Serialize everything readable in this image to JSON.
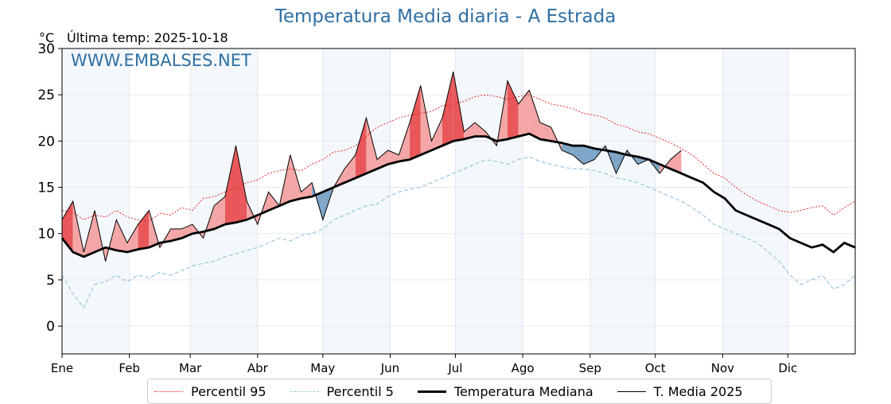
{
  "title": "Temperatura Media diaria - A Estrada",
  "unit_label": "°C",
  "last_temp_label": "Última temp: 2025-10-18",
  "watermark": "WWW.EMBALSES.NET",
  "colors": {
    "p95": "#e8282b",
    "p5": "#9ecae1",
    "median": "#000000",
    "current": "#000000",
    "above_fill": "#f4a6a6",
    "above_fill_strong": "#e8585a",
    "below_fill": "#7ea6c8",
    "below_fill_strong": "#2f6598",
    "month_band": "#f4f8fc",
    "title": "#2e6fa3"
  },
  "chart_data": {
    "type": "line",
    "title": "Temperatura Media diaria - A Estrada",
    "xlabel": "",
    "ylabel": "°C",
    "ylim": [
      -3,
      30
    ],
    "xlim": [
      1,
      366
    ],
    "grid": true,
    "legend_position": "bottom-center",
    "yticks": [
      0,
      5,
      10,
      15,
      20,
      25,
      30
    ],
    "xticks": [
      {
        "day": 1,
        "label": "Ene"
      },
      {
        "day": 32,
        "label": "Feb"
      },
      {
        "day": 60,
        "label": "Mar"
      },
      {
        "day": 91,
        "label": "Abr"
      },
      {
        "day": 121,
        "label": "May"
      },
      {
        "day": 152,
        "label": "Jun"
      },
      {
        "day": 182,
        "label": "Jul"
      },
      {
        "day": 213,
        "label": "Ago"
      },
      {
        "day": 244,
        "label": "Sep"
      },
      {
        "day": 274,
        "label": "Oct"
      },
      {
        "day": 305,
        "label": "Nov"
      },
      {
        "day": 335,
        "label": "Dic"
      }
    ],
    "x": [
      1,
      6,
      11,
      16,
      21,
      26,
      31,
      36,
      41,
      46,
      51,
      56,
      61,
      66,
      71,
      76,
      81,
      86,
      91,
      96,
      101,
      106,
      111,
      116,
      121,
      126,
      131,
      136,
      141,
      146,
      151,
      156,
      161,
      166,
      171,
      176,
      181,
      186,
      191,
      196,
      201,
      206,
      211,
      216,
      221,
      226,
      231,
      236,
      241,
      246,
      251,
      256,
      261,
      266,
      271,
      276,
      281,
      286,
      291,
      296,
      301,
      306,
      311,
      316,
      321,
      326,
      331,
      336,
      341,
      346,
      351,
      356,
      361,
      366
    ],
    "series": [
      {
        "name": "Percentil 95",
        "style": "dotted-red",
        "values": [
          12.5,
          12.3,
          11.5,
          12.0,
          11.8,
          12.5,
          11.8,
          11.5,
          11.3,
          12.2,
          12.0,
          12.8,
          12.5,
          13.8,
          14.0,
          14.5,
          15.0,
          15.5,
          15.8,
          16.5,
          16.8,
          17.0,
          16.8,
          17.5,
          18.0,
          18.8,
          19.0,
          19.5,
          20.5,
          21.5,
          22.0,
          22.5,
          22.8,
          23.0,
          23.2,
          23.8,
          24.0,
          24.3,
          24.8,
          25.0,
          24.8,
          24.5,
          24.8,
          25.0,
          24.5,
          24.0,
          23.8,
          23.5,
          23.0,
          22.8,
          22.5,
          21.8,
          21.5,
          21.0,
          20.8,
          20.3,
          19.8,
          19.2,
          18.5,
          17.5,
          16.5,
          16.0,
          15.0,
          14.2,
          13.5,
          13.0,
          12.5,
          12.3,
          12.5,
          12.8,
          13.0,
          12.0,
          12.8,
          13.5
        ]
      },
      {
        "name": "Percentil 5",
        "style": "dashed-lightblue",
        "values": [
          5.5,
          3.5,
          2.0,
          4.5,
          4.8,
          5.5,
          4.8,
          5.5,
          5.2,
          5.8,
          5.5,
          6.0,
          6.5,
          6.8,
          7.0,
          7.5,
          7.8,
          8.2,
          8.5,
          9.0,
          9.5,
          9.2,
          9.8,
          10.0,
          10.5,
          11.5,
          12.0,
          12.5,
          13.0,
          13.2,
          14.0,
          14.5,
          14.8,
          15.0,
          15.5,
          16.0,
          16.5,
          17.0,
          17.5,
          18.0,
          17.8,
          17.5,
          18.0,
          18.3,
          17.8,
          17.5,
          17.2,
          17.0,
          17.0,
          16.8,
          16.5,
          16.0,
          15.8,
          15.5,
          15.0,
          14.5,
          14.0,
          13.5,
          12.8,
          12.0,
          11.0,
          10.5,
          10.0,
          9.5,
          9.0,
          8.0,
          7.0,
          5.5,
          4.5,
          5.0,
          5.5,
          4.0,
          4.5,
          5.5
        ]
      },
      {
        "name": "Temperatura Mediana",
        "style": "thick-black",
        "values": [
          9.5,
          8.0,
          7.5,
          8.0,
          8.5,
          8.2,
          8.0,
          8.3,
          8.5,
          9.0,
          9.2,
          9.5,
          10.0,
          10.2,
          10.5,
          11.0,
          11.2,
          11.5,
          12.0,
          12.5,
          13.0,
          13.5,
          13.8,
          14.0,
          14.5,
          15.0,
          15.5,
          16.0,
          16.5,
          17.0,
          17.5,
          17.8,
          18.0,
          18.5,
          19.0,
          19.5,
          20.0,
          20.2,
          20.5,
          20.5,
          20.0,
          20.2,
          20.5,
          20.8,
          20.2,
          20.0,
          19.8,
          19.5,
          19.5,
          19.2,
          19.0,
          18.8,
          18.5,
          18.3,
          18.0,
          17.5,
          17.0,
          16.5,
          16.0,
          15.5,
          14.5,
          13.8,
          12.5,
          12.0,
          11.5,
          11.0,
          10.5,
          9.5,
          9.0,
          8.5,
          8.8,
          8.0,
          9.0,
          8.5
        ]
      },
      {
        "name": "T. Media 2025",
        "style": "thin-black",
        "values": [
          11.5,
          13.5,
          8.0,
          12.5,
          7.0,
          11.5,
          9.0,
          11.0,
          12.5,
          8.5,
          10.5,
          10.5,
          11.0,
          9.5,
          13.0,
          14.0,
          19.5,
          13.5,
          11.0,
          14.5,
          13.0,
          18.5,
          14.5,
          15.5,
          11.5,
          15.0,
          17.0,
          18.5,
          22.5,
          18.0,
          19.0,
          18.5,
          22.0,
          26.0,
          20.0,
          22.5,
          27.5,
          21.0,
          22.0,
          21.0,
          19.5,
          26.5,
          24.0,
          25.5,
          22.0,
          21.5,
          19.0,
          18.5,
          17.5,
          18.0,
          19.5,
          16.5,
          19.0,
          17.5,
          18.0,
          16.5,
          18.0,
          19.0,
          null,
          null,
          null,
          null,
          null,
          null,
          null,
          null,
          null,
          null,
          null,
          null,
          null,
          null,
          null,
          null
        ]
      }
    ]
  },
  "legend": [
    {
      "label": "Percentil 95",
      "key": "p95"
    },
    {
      "label": "Percentil 5",
      "key": "p5"
    },
    {
      "label": "Temperatura Mediana",
      "key": "median"
    },
    {
      "label": "T. Media 2025",
      "key": "current"
    }
  ]
}
